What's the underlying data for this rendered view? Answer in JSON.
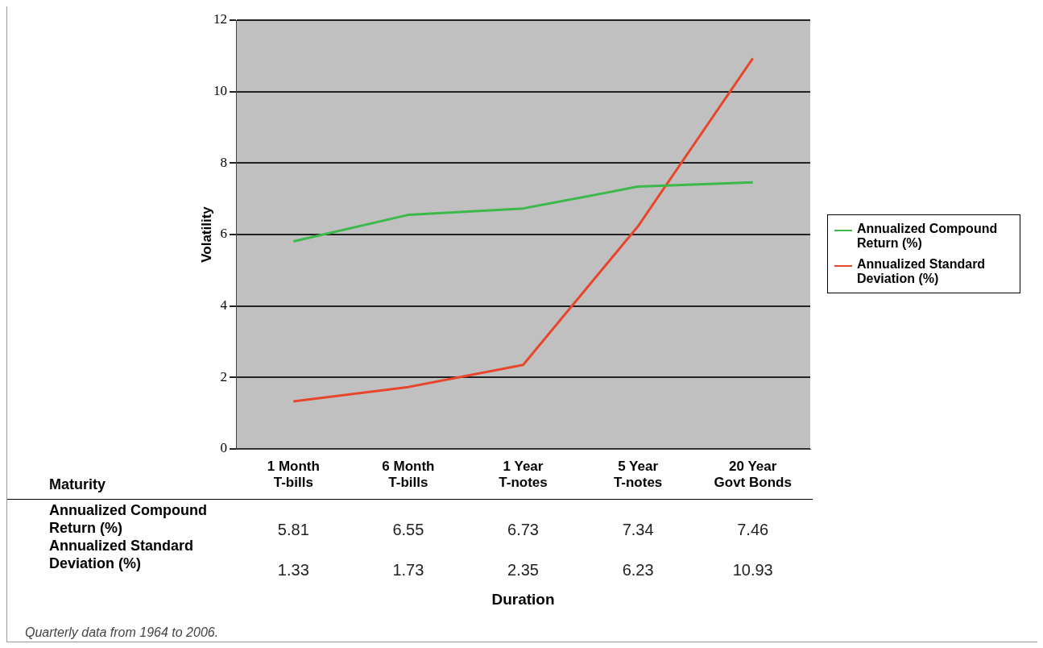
{
  "chart_data": {
    "type": "line",
    "ylabel": "Volatility",
    "categories": [
      "1 Month\nT-bills",
      "6 Month\nT-bills",
      "1 Year\nT-notes",
      "5 Year\nT-notes",
      "20 Year\nGovt Bonds"
    ],
    "series": [
      {
        "name": "Annualized Compound Return (%)",
        "color": "#3cb94a",
        "values": [
          5.81,
          6.55,
          6.73,
          7.34,
          7.46
        ]
      },
      {
        "name": "Annualized Standard Deviation (%)",
        "color": "#e8462a",
        "values": [
          1.33,
          1.73,
          2.35,
          6.23,
          10.93
        ]
      }
    ],
    "ylim": [
      0,
      12
    ],
    "yticks": [
      0,
      2,
      4,
      6,
      8,
      10,
      12
    ],
    "grid": "y",
    "legend": "right",
    "marker": "none",
    "data_labels": true,
    "annotations": [
      "Maturity",
      "Duration",
      "Quarterly data from 1964 to 2006."
    ]
  }
}
